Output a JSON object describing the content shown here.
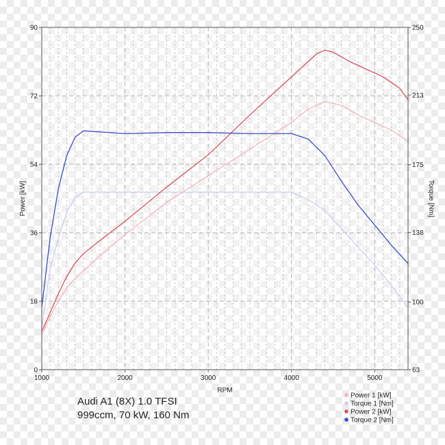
{
  "chart_data": {
    "type": "line",
    "xlabel": "RPM",
    "ylabel_left": "Power [kW]",
    "ylabel_right": "Torque [Nm]",
    "xlim": [
      1000,
      5400
    ],
    "x_ticks": [
      1000,
      2000,
      3000,
      4000,
      5000
    ],
    "ylim_left": [
      0,
      90
    ],
    "y_ticks_left": [
      0,
      18,
      36,
      54,
      72,
      90
    ],
    "ylim_right": [
      63,
      250
    ],
    "y_ticks_right": [
      63,
      100,
      138,
      175,
      213,
      250
    ],
    "grid": "on",
    "legend_position": "bottom-right",
    "series": [
      {
        "name": "Power 1 [kW]",
        "axis": "left",
        "color": "#f5b5bd",
        "points": [
          [
            1000,
            9
          ],
          [
            1100,
            14
          ],
          [
            1200,
            18
          ],
          [
            1300,
            21.5
          ],
          [
            1400,
            24
          ],
          [
            1500,
            26
          ],
          [
            1700,
            30
          ],
          [
            2000,
            35.5
          ],
          [
            2500,
            44
          ],
          [
            3000,
            51
          ],
          [
            3500,
            58
          ],
          [
            4000,
            65
          ],
          [
            4200,
            68.5
          ],
          [
            4400,
            70.5
          ],
          [
            4600,
            69.5
          ],
          [
            4800,
            67
          ],
          [
            5000,
            65
          ],
          [
            5200,
            63
          ],
          [
            5400,
            60
          ]
        ]
      },
      {
        "name": "Torque 1 [Nm]",
        "axis": "right",
        "color": "#c6d0ef",
        "points": [
          [
            1000,
            86
          ],
          [
            1100,
            118
          ],
          [
            1200,
            135
          ],
          [
            1300,
            149
          ],
          [
            1400,
            157
          ],
          [
            1500,
            160
          ],
          [
            2000,
            160
          ],
          [
            2500,
            160
          ],
          [
            3000,
            160
          ],
          [
            3500,
            160
          ],
          [
            4000,
            160
          ],
          [
            4200,
            156
          ],
          [
            4400,
            150
          ],
          [
            4600,
            140
          ],
          [
            4800,
            130
          ],
          [
            5000,
            120
          ],
          [
            5200,
            109
          ],
          [
            5400,
            97
          ]
        ]
      },
      {
        "name": "Power 2 [kW]",
        "axis": "left",
        "color": "#d8505e",
        "points": [
          [
            1000,
            10
          ],
          [
            1100,
            15
          ],
          [
            1200,
            20
          ],
          [
            1300,
            24.5
          ],
          [
            1400,
            28
          ],
          [
            1500,
            30.5
          ],
          [
            1700,
            34
          ],
          [
            2000,
            39
          ],
          [
            2500,
            48
          ],
          [
            3000,
            56.5
          ],
          [
            3500,
            67
          ],
          [
            4000,
            77
          ],
          [
            4200,
            81
          ],
          [
            4300,
            83
          ],
          [
            4400,
            84
          ],
          [
            4500,
            83.5
          ],
          [
            4700,
            81
          ],
          [
            4900,
            79
          ],
          [
            5100,
            77
          ],
          [
            5300,
            74
          ],
          [
            5400,
            71
          ]
        ]
      },
      {
        "name": "Torque 2 [Nm]",
        "axis": "right",
        "color": "#3a48c8",
        "points": [
          [
            1000,
            97
          ],
          [
            1100,
            135
          ],
          [
            1200,
            162
          ],
          [
            1300,
            180
          ],
          [
            1400,
            190
          ],
          [
            1500,
            193.5
          ],
          [
            2000,
            192
          ],
          [
            2500,
            192.5
          ],
          [
            3000,
            192.5
          ],
          [
            3500,
            192
          ],
          [
            4000,
            192
          ],
          [
            4200,
            189
          ],
          [
            4400,
            180
          ],
          [
            4600,
            166
          ],
          [
            4800,
            153
          ],
          [
            5000,
            142
          ],
          [
            5200,
            131
          ],
          [
            5400,
            121
          ]
        ]
      }
    ]
  },
  "caption": {
    "line1": "Audi A1 (8X) 1.0 TFSI",
    "line2": "999ccm, 70 kW, 160 Nm"
  },
  "legend_marker_color": "#e2e2e2"
}
